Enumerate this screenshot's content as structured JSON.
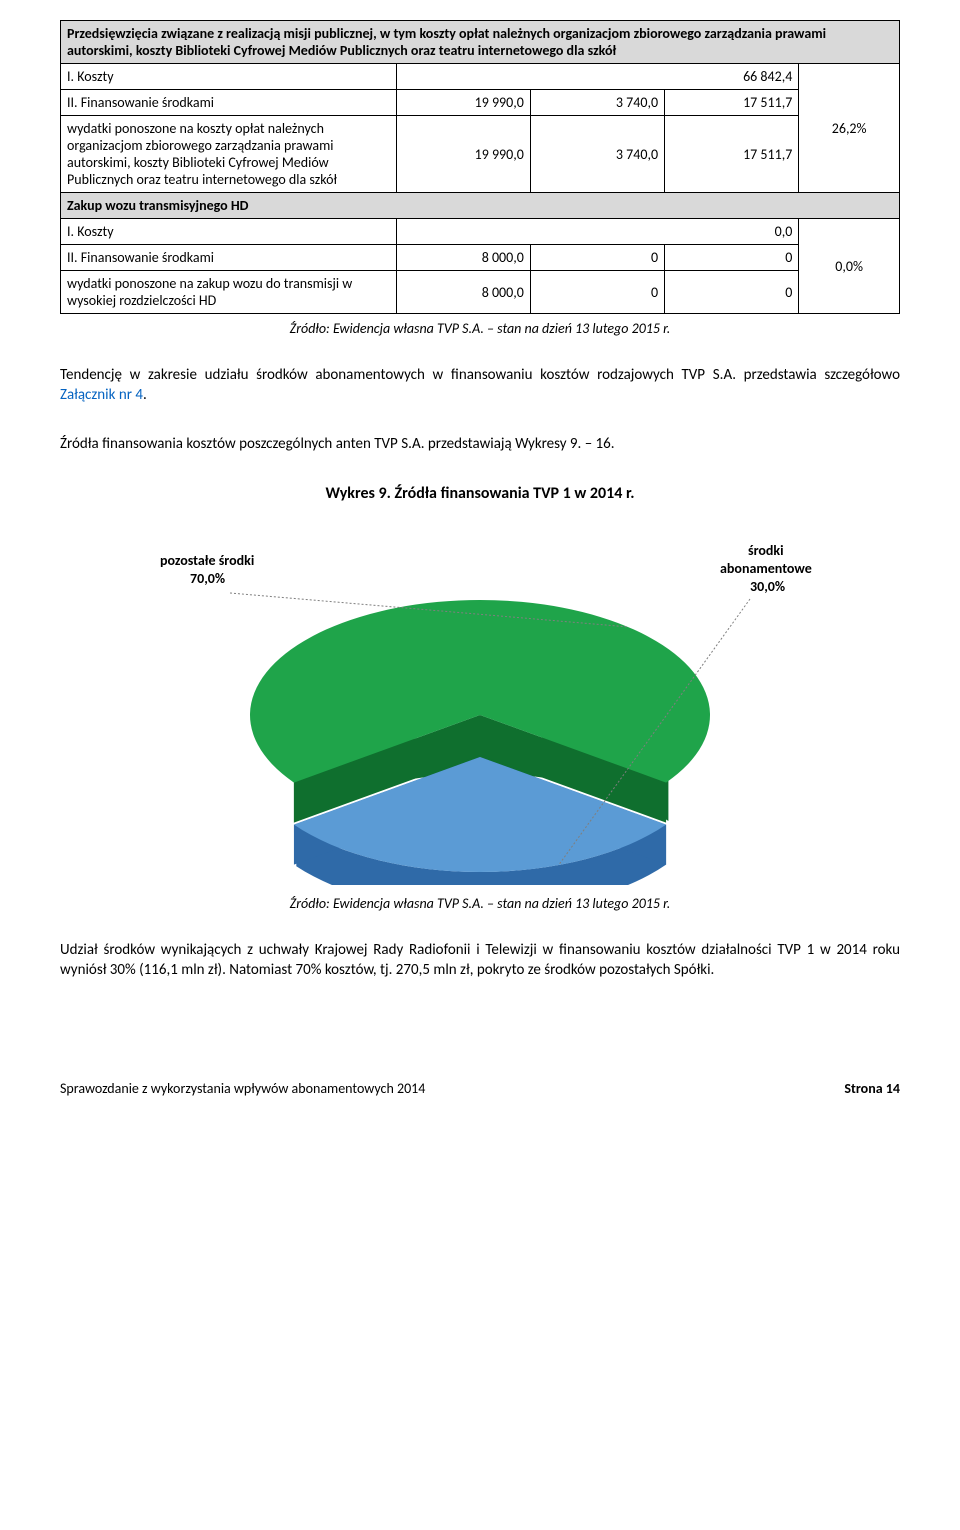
{
  "table": {
    "section1": {
      "header": "Przedsięwzięcia związane z realizacją misji publicznej, w tym koszty opłat należnych organizacjom zbiorowego zarządzania prawami autorskimi, koszty Biblioteki Cyfrowej Mediów Publicznych oraz teatru internetowego dla szkół",
      "row_koszty_label": "I. Koszty",
      "row_koszty_val": "66 842,4",
      "row_finans_label": "II. Finansowanie środkami",
      "row_finans_c1": "19 990,0",
      "row_finans_c2": "3 740,0",
      "row_finans_c3": "17 511,7",
      "row_wydatki_label": "wydatki ponoszone na koszty opłat należnych organizacjom zbiorowego zarządzania prawami autorskimi, koszty Biblioteki Cyfrowej Mediów Publicznych oraz teatru internetowego dla szkół",
      "row_wydatki_c1": "19 990,0",
      "row_wydatki_c2": "3 740,0",
      "row_wydatki_c3": "17 511,7",
      "pct": "26,2%"
    },
    "section2": {
      "header": "Zakup wozu transmisyjnego HD",
      "row_koszty_label": "I. Koszty",
      "row_koszty_val": "0,0",
      "row_finans_label": "II. Finansowanie środkami",
      "row_finans_c1": "8 000,0",
      "row_finans_c2": "0",
      "row_finans_c3": "0",
      "row_wydatki_label": "wydatki ponoszone na zakup wozu do transmisji w wysokiej rozdzielczości HD",
      "row_wydatki_c1": "8 000,0",
      "row_wydatki_c2": "0",
      "row_wydatki_c3": "0",
      "pct": "0,0%"
    }
  },
  "source_line": "Źródło: Ewidencja własna TVP S.A. – stan na dzień 13 lutego 2015 r.",
  "para1_a": "Tendencję w zakresie udziału środków abonamentowych w finansowaniu kosztów rodzajowych TVP S.A. przedstawia szczegółowo ",
  "para1_link": "Załącznik nr 4",
  "para1_b": ".",
  "para2": "Źródła finansowania kosztów poszczególnych anten TVP S.A. przedstawiają Wykresy 9. – 16.",
  "chart": {
    "title": "Wykres 9.  Źródła finansowania TVP 1 w 2014 r.",
    "label_left_1": "pozostałe środki",
    "label_left_2": "70,0%",
    "label_right_1": "środki",
    "label_right_2": "abonamentowe",
    "label_right_3": "30,0%",
    "colors": {
      "slice_green_top": "#1fa44a",
      "slice_green_side": "#0f6f2e",
      "slice_blue_top": "#5b9bd5",
      "slice_blue_side": "#2f6aa8",
      "leader": "#7f7f7f"
    },
    "slices": {
      "green_pct": 70.0,
      "blue_pct": 30.0
    },
    "label_fontsize": 14,
    "label_fontweight": "bold"
  },
  "para3": "Udział środków wynikających z uchwały Krajowej Rady Radiofonii i Telewizji w finansowaniu kosztów działalności TVP 1 w 2014 roku wyniósł 30% (116,1 mln zł). Natomiast 70% kosztów, tj. 270,5 mln zł, pokryto ze środków pozostałych Spółki.",
  "footer_left": "Sprawozdanie z wykorzystania wpływów abonamentowych 2014",
  "footer_right": "Strona 14"
}
